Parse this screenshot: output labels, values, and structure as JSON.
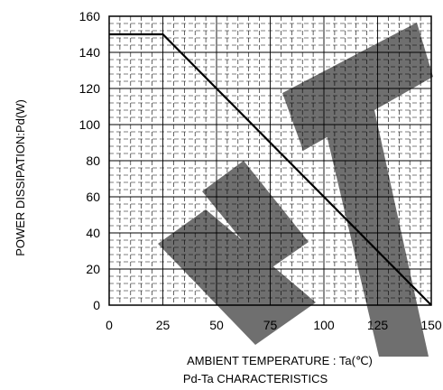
{
  "chart_data": {
    "type": "line",
    "title": "Pd-Ta CHARACTERISTICS",
    "xlabel": "AMBIENT TEMPERATURE : Ta(℃)",
    "ylabel": "POWER DISSIPATION:Pd(W)",
    "xlim": [
      0,
      150
    ],
    "ylim": [
      0,
      160
    ],
    "x_ticks": [
      0,
      25,
      50,
      75,
      100,
      125,
      150
    ],
    "y_ticks": [
      0,
      20,
      40,
      60,
      80,
      100,
      120,
      140,
      160
    ],
    "grid": true,
    "series": [
      {
        "x": [
          0,
          25,
          150
        ],
        "y": [
          150,
          150,
          0
        ]
      }
    ],
    "colors": {
      "line": "#000000",
      "watermark": "#6f6f6f",
      "grid": "#000000"
    }
  }
}
